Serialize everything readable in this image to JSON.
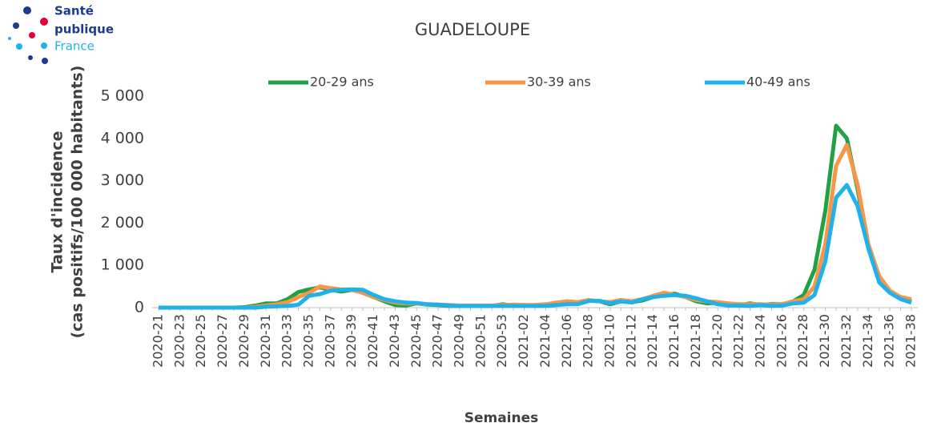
{
  "logo": {
    "line1": "Santé",
    "line2": "publique",
    "line3": "France"
  },
  "chart_data": {
    "type": "line",
    "title": "GUADELOUPE",
    "y_label": [
      "Taux d'incidence",
      "(cas positifs/100 000 habitants)"
    ],
    "x_label": "Semaines",
    "categories": [
      "2020-21",
      null,
      "2020-23",
      null,
      "2020-25",
      null,
      "2020-27",
      null,
      "2020-29",
      null,
      "2020-31",
      null,
      "2020-33",
      null,
      "2020-35",
      null,
      "2020-37",
      null,
      "2020-39",
      null,
      "2020-41",
      null,
      "2020-43",
      null,
      "2020-45",
      null,
      "2020-47",
      null,
      "2020-49",
      null,
      "2020-51",
      null,
      "2020-53",
      null,
      "2021-02",
      null,
      "2021-04",
      null,
      "2021-06",
      null,
      "2021-08",
      null,
      "2021-10",
      null,
      "2021-12",
      null,
      "2021-14",
      null,
      "2021-16",
      null,
      "2021-18",
      null,
      "2021-20",
      null,
      "2021-22",
      null,
      "2021-24",
      null,
      "2021-26",
      null,
      "2021-28",
      null,
      "2021-30",
      null,
      "2021-32",
      null,
      "2021-34",
      null,
      "2021-36",
      null,
      "2021-38"
    ],
    "series": [
      {
        "name": "20-29 ans",
        "color": "#22a045",
        "values": [
          0,
          0,
          0,
          0,
          0,
          0,
          0,
          0,
          10,
          50,
          100,
          100,
          200,
          370,
          430,
          480,
          420,
          380,
          420,
          350,
          250,
          150,
          60,
          50,
          100,
          70,
          60,
          40,
          40,
          40,
          40,
          40,
          80,
          50,
          60,
          50,
          50,
          80,
          100,
          100,
          170,
          150,
          80,
          150,
          130,
          170,
          250,
          300,
          330,
          250,
          150,
          100,
          120,
          80,
          60,
          100,
          60,
          80,
          80,
          150,
          300,
          900,
          2300,
          4300,
          4000,
          2800,
          1400,
          700,
          350,
          250,
          150
        ]
      },
      {
        "name": "30-39 ans",
        "color": "#f79646",
        "values": [
          0,
          0,
          0,
          0,
          0,
          0,
          0,
          0,
          0,
          20,
          50,
          80,
          130,
          250,
          350,
          500,
          460,
          430,
          420,
          350,
          250,
          180,
          120,
          100,
          100,
          80,
          70,
          60,
          50,
          50,
          50,
          50,
          60,
          70,
          60,
          60,
          80,
          120,
          150,
          130,
          180,
          150,
          130,
          180,
          150,
          200,
          280,
          350,
          300,
          250,
          180,
          150,
          130,
          100,
          80,
          80,
          80,
          60,
          80,
          150,
          200,
          500,
          1500,
          3350,
          3850,
          2900,
          1500,
          750,
          400,
          250,
          200
        ]
      },
      {
        "name": "40-49 ans",
        "color": "#1fb2ea",
        "values": [
          0,
          0,
          0,
          0,
          0,
          0,
          0,
          0,
          0,
          0,
          20,
          30,
          40,
          70,
          280,
          320,
          400,
          420,
          430,
          420,
          300,
          200,
          150,
          120,
          110,
          80,
          70,
          50,
          40,
          40,
          40,
          40,
          40,
          40,
          40,
          40,
          40,
          60,
          80,
          80,
          160,
          160,
          100,
          150,
          120,
          200,
          250,
          280,
          300,
          280,
          220,
          150,
          80,
          50,
          50,
          40,
          60,
          40,
          50,
          100,
          120,
          300,
          1100,
          2600,
          2900,
          2400,
          1400,
          600,
          350,
          200,
          120
        ]
      }
    ],
    "ylim": [
      0,
      5000
    ],
    "yticks": [
      0,
      {
        "value": 1000,
        "label": "1 000"
      },
      {
        "value": 2000,
        "label": "2 000"
      },
      {
        "value": 3000,
        "label": "3 000"
      },
      {
        "value": 4000,
        "label": "4 000"
      },
      {
        "value": 5000,
        "label": "5 000"
      }
    ],
    "legend": "top"
  }
}
